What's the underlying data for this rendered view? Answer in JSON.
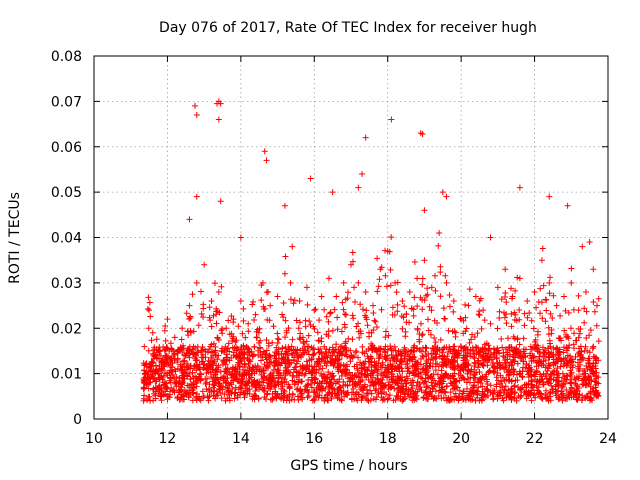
{
  "chart_data": {
    "type": "scatter",
    "title": "Day 076 of 2017, Rate Of TEC Index for receiver hugh",
    "xlabel": "GPS time / hours",
    "ylabel": "ROTI / TECUs",
    "xlim": [
      10,
      24
    ],
    "ylim": [
      0,
      0.08
    ],
    "xticks": [
      "10",
      "12",
      "14",
      "16",
      "18",
      "20",
      "22",
      "24"
    ],
    "yticks": [
      "0",
      "0.01",
      "0.02",
      "0.03",
      "0.04",
      "0.05",
      "0.06",
      "0.07",
      "0.08"
    ],
    "grid": true,
    "marker": "plus",
    "color": "#ff0000",
    "series": [
      {
        "x": [
          11.4,
          11.5,
          11.6,
          11.8,
          12.0,
          12.2,
          12.4,
          12.6,
          12.8,
          13.0,
          13.2,
          13.4,
          13.6,
          13.8,
          14.0,
          14.2,
          14.4,
          14.6,
          14.8,
          15.0,
          15.2,
          15.4,
          15.6,
          15.8,
          16.0,
          16.2,
          16.4,
          16.6,
          16.8,
          17.0,
          17.2,
          17.4,
          17.6,
          17.8,
          18.0,
          18.2,
          18.4,
          18.6,
          18.8,
          19.0,
          19.2,
          19.4,
          19.6,
          19.8,
          20.0,
          20.2,
          20.4,
          20.6,
          20.8,
          21.0,
          21.2,
          21.4,
          21.6,
          21.8,
          22.0,
          22.2,
          22.4,
          22.6,
          22.8,
          23.0,
          23.2,
          23.4,
          23.6,
          23.7,
          12.75,
          12.8,
          13.35,
          13.4,
          13.45,
          13.4,
          14.65,
          14.7,
          17.4,
          18.1,
          18.9,
          18.95,
          12.8,
          13.45,
          15.9,
          17.2,
          17.3,
          19.5,
          19.6,
          21.6,
          22.4,
          22.9,
          16.5,
          12.6,
          14.0,
          15.2,
          19.0,
          20.8,
          23.3,
          23.5
        ],
        "y": [
          0.012,
          0.024,
          0.019,
          0.015,
          0.022,
          0.018,
          0.02,
          0.025,
          0.03,
          0.034,
          0.026,
          0.028,
          0.02,
          0.022,
          0.026,
          0.021,
          0.023,
          0.03,
          0.025,
          0.027,
          0.032,
          0.038,
          0.026,
          0.029,
          0.024,
          0.027,
          0.031,
          0.027,
          0.03,
          0.034,
          0.03,
          0.028,
          0.025,
          0.033,
          0.037,
          0.03,
          0.026,
          0.028,
          0.031,
          0.035,
          0.029,
          0.041,
          0.03,
          0.026,
          0.022,
          0.025,
          0.027,
          0.024,
          0.021,
          0.029,
          0.033,
          0.027,
          0.031,
          0.026,
          0.028,
          0.035,
          0.03,
          0.025,
          0.027,
          0.03,
          0.024,
          0.028,
          0.033,
          0.025,
          0.069,
          0.067,
          0.0695,
          0.07,
          0.0695,
          0.066,
          0.059,
          0.057,
          0.062,
          0.066,
          0.063,
          0.0628,
          0.049,
          0.048,
          0.053,
          0.051,
          0.054,
          0.05,
          0.049,
          0.051,
          0.049,
          0.047,
          0.05,
          0.044,
          0.04,
          0.047,
          0.046,
          0.04,
          0.038,
          0.039
        ]
      }
    ]
  }
}
